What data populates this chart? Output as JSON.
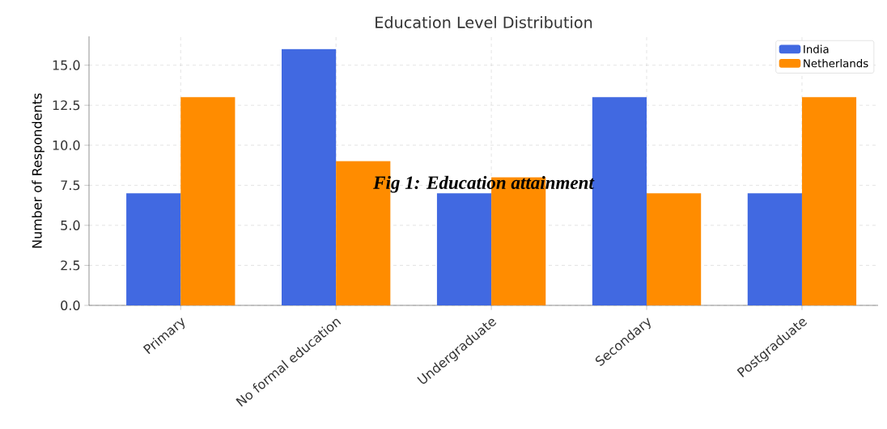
{
  "chart_data": {
    "type": "bar",
    "title": "Education Level Distribution",
    "ylabel": "Number of Respondents",
    "categories": [
      "Primary",
      "No formal education",
      "Undergraduate",
      "Secondary",
      "Postgraduate"
    ],
    "series": [
      {
        "name": "India",
        "color": "#4169e1",
        "values": [
          7,
          16,
          7,
          13,
          7
        ]
      },
      {
        "name": "Netherlands",
        "color": "#ff8c00",
        "values": [
          13,
          9,
          8,
          7,
          13
        ]
      }
    ],
    "ylim": [
      0,
      16.8
    ],
    "yticks": [
      {
        "value": 0,
        "label": "0.0"
      },
      {
        "value": 2.5,
        "label": "2.5"
      },
      {
        "value": 5,
        "label": "5.0"
      },
      {
        "value": 7.5,
        "label": "7.5"
      },
      {
        "value": 10,
        "label": "10.0"
      },
      {
        "value": 12.5,
        "label": "12.5"
      },
      {
        "value": 15,
        "label": "15.0"
      }
    ],
    "grid": true,
    "legend": "top right",
    "annotations": [
      "**Fig 1: Education attainment**"
    ]
  }
}
